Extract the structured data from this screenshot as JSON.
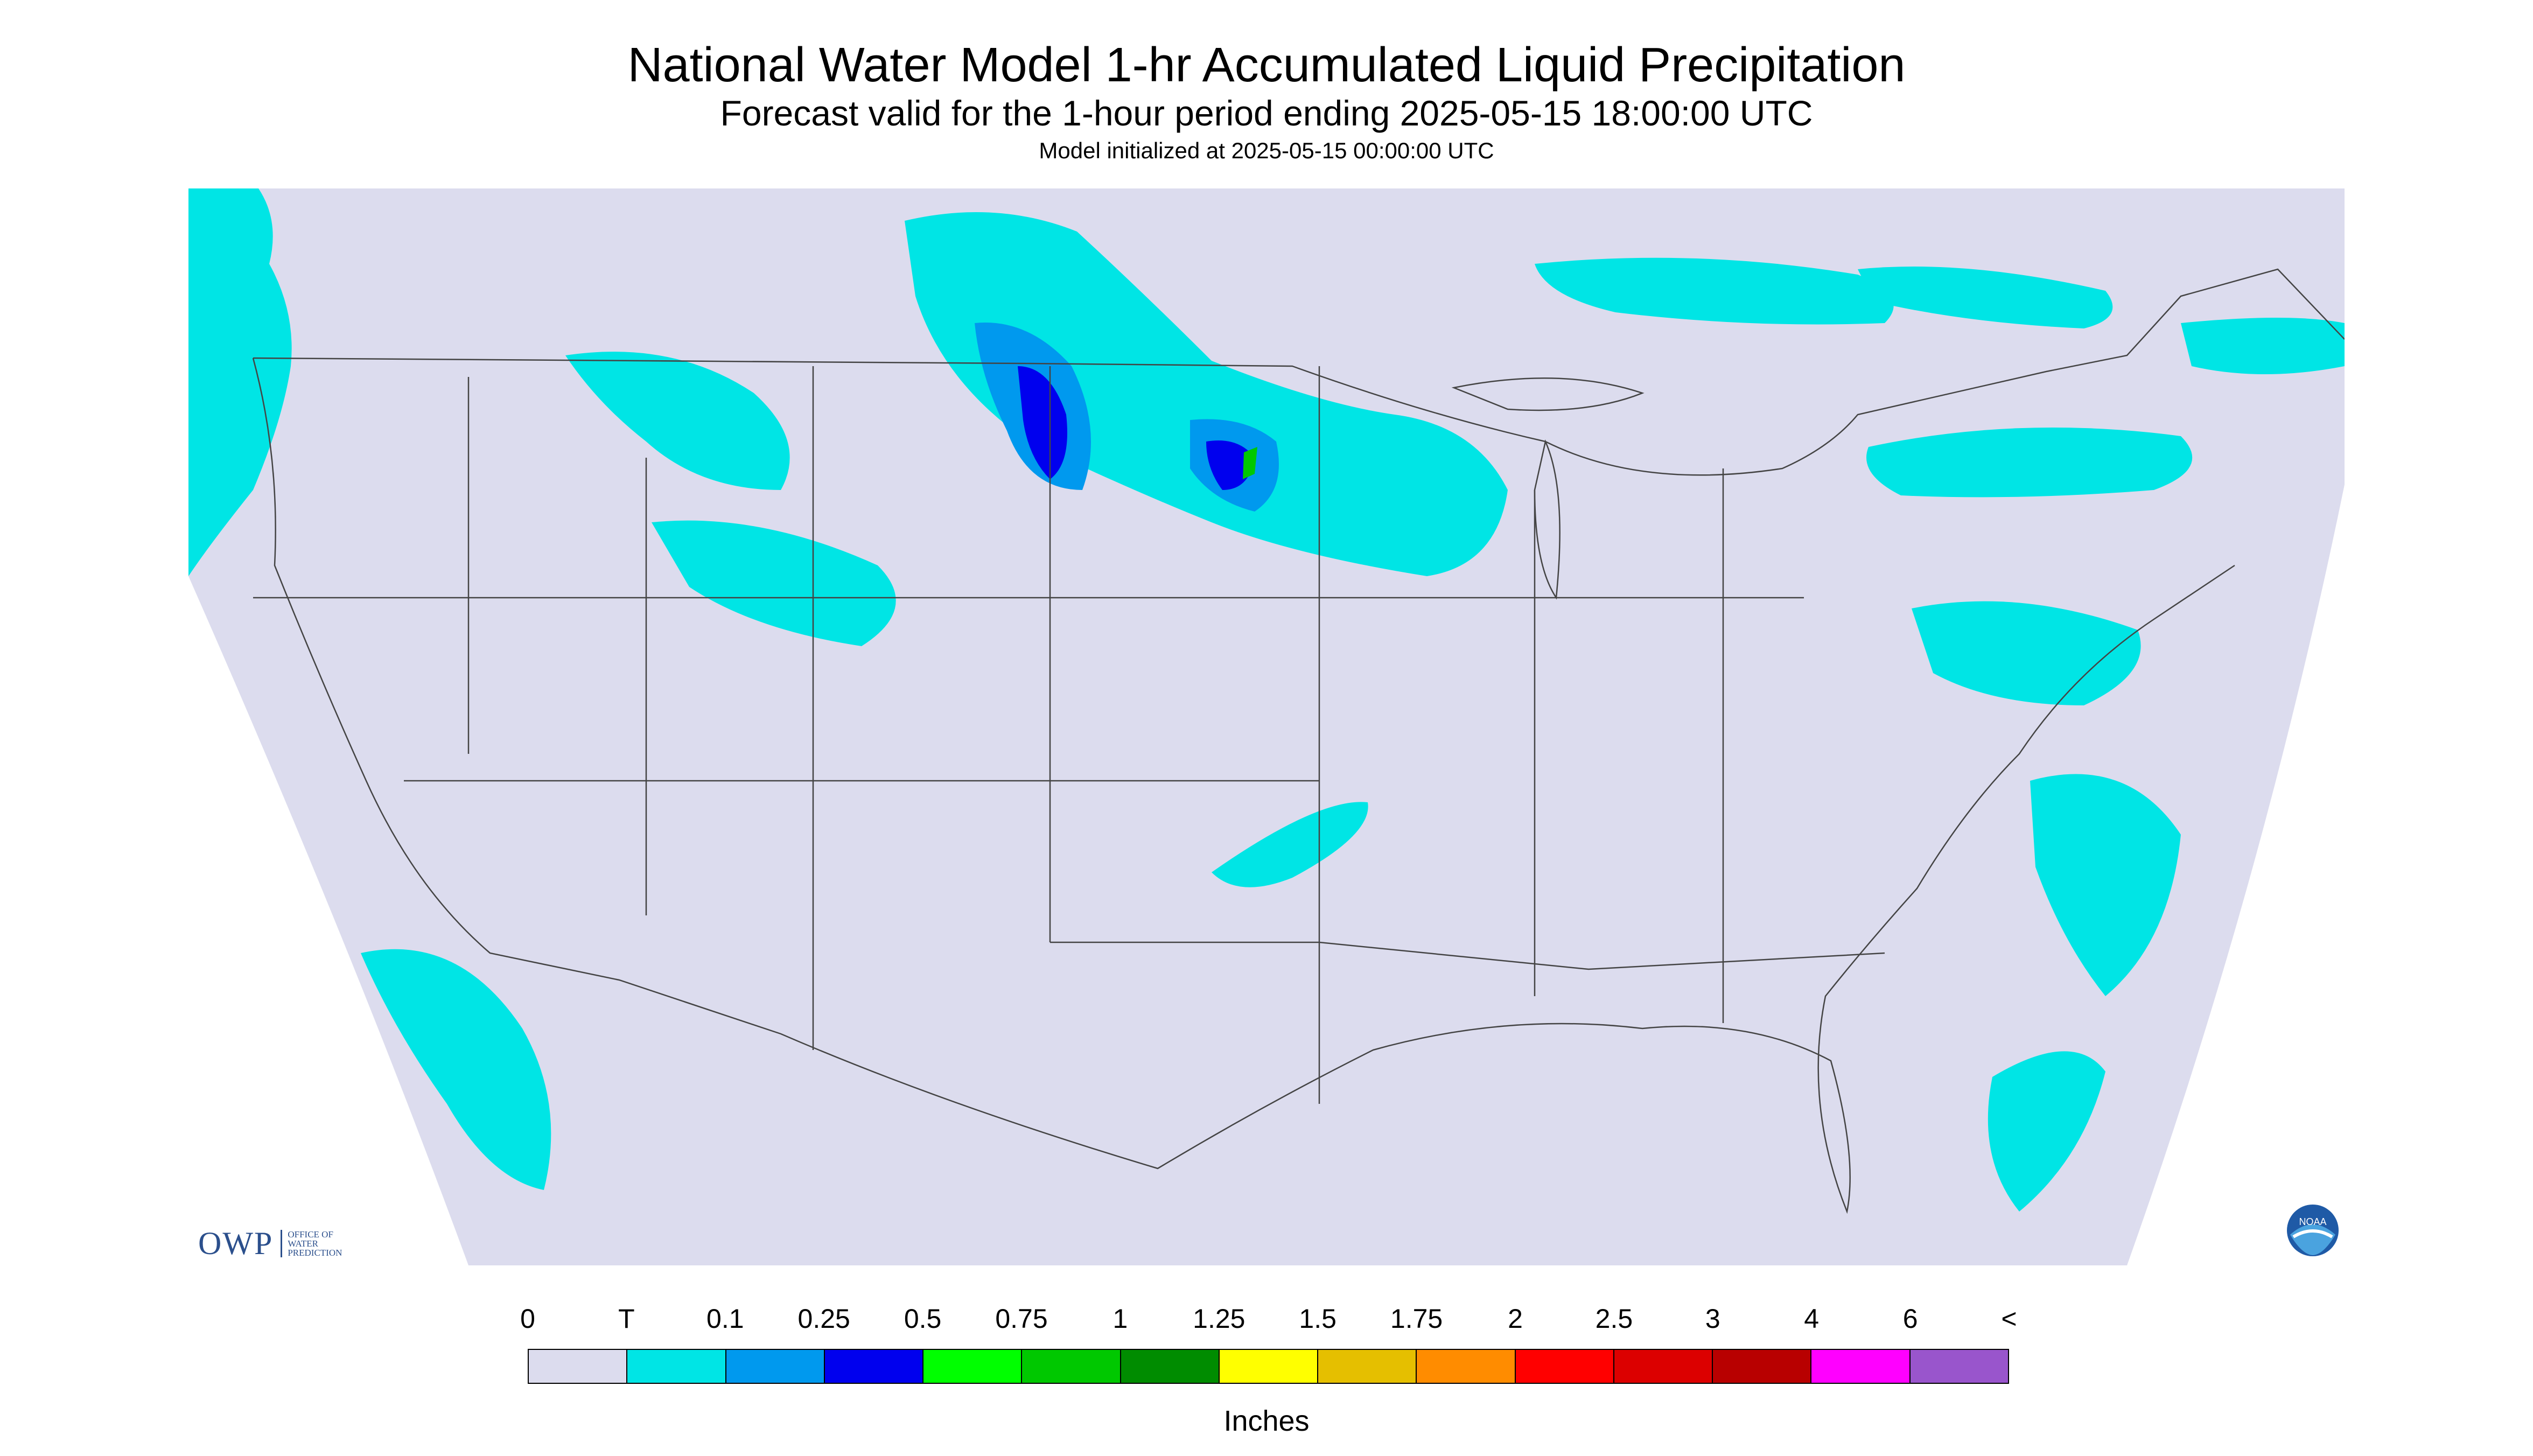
{
  "header": {
    "title": "National Water Model 1-hr Accumulated Liquid Precipitation",
    "subtitle": "Forecast valid for the 1-hour period ending 2025-05-15 18:00:00 UTC",
    "init_text": "Model initialized at 2025-05-15 00:00:00 UTC"
  },
  "legend": {
    "labels": [
      "0",
      "T",
      "0.1",
      "0.25",
      "0.5",
      "0.75",
      "1",
      "1.25",
      "1.5",
      "1.75",
      "2",
      "2.5",
      "3",
      "4",
      "6",
      "<"
    ],
    "colors": [
      "#dcdcee",
      "#00e5e5",
      "#0099ee",
      "#0000ee",
      "#00ff00",
      "#00c800",
      "#008c00",
      "#ffff00",
      "#e5bf00",
      "#ff8c00",
      "#ff0000",
      "#dc0000",
      "#b80000",
      "#ff00ff",
      "#9955cc"
    ],
    "units": "Inches"
  },
  "map": {
    "background_color": "#dcdcee",
    "precip_light_color": "#00e5e5",
    "precip_medium_color": "#0099ee",
    "precip_heavy_color": "#0000ee"
  },
  "logos": {
    "owp_mark": "OWP",
    "owp_sub": [
      "OFFICE OF",
      "WATER",
      "PREDICTION"
    ],
    "noaa_text": "NOAA"
  }
}
